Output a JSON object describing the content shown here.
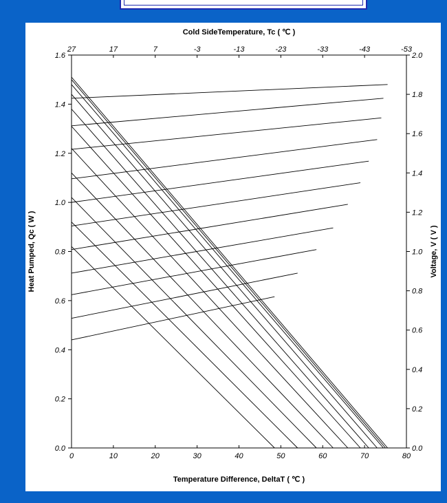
{
  "chart_data": {
    "type": "line",
    "title": "",
    "xlabel": "Temperature Difference, DeltaT ( ℃ )",
    "x2label": "Cold SideTemperature, Tc ( ℃ )",
    "ylabel": "Heat Pumped, Qc ( W )",
    "y2label": "Voltage, V ( V )",
    "xlim": [
      0,
      80
    ],
    "ylim": [
      0,
      1.6
    ],
    "y2lim": [
      0,
      2.0
    ],
    "grid": false,
    "x_ticks": [
      "0",
      "10",
      "20",
      "30",
      "40",
      "50",
      "60",
      "70",
      "80"
    ],
    "x2_ticks": [
      "27",
      "17",
      "7",
      "-3",
      "-13",
      "-23",
      "-33",
      "-43",
      "-53"
    ],
    "y_ticks": [
      "0.0",
      "0.2",
      "0.4",
      "0.6",
      "0.8",
      "1.0",
      "1.2",
      "1.4",
      "1.6"
    ],
    "y2_ticks": [
      "0.0",
      "0.2",
      "0.4",
      "0.6",
      "0.8",
      "1.0",
      "1.2",
      "1.4",
      "1.6",
      "1.8",
      "2.0"
    ],
    "heat_pumped_series": [
      {
        "x": [
          0,
          48.5
        ],
        "y": [
          0.82,
          0
        ]
      },
      {
        "x": [
          0,
          54
        ],
        "y": [
          0.92,
          0
        ]
      },
      {
        "x": [
          0,
          58.5
        ],
        "y": [
          1.02,
          0
        ]
      },
      {
        "x": [
          0,
          62.5
        ],
        "y": [
          1.12,
          0
        ]
      },
      {
        "x": [
          0,
          66
        ],
        "y": [
          1.22,
          0
        ]
      },
      {
        "x": [
          0,
          69
        ],
        "y": [
          1.31,
          0
        ]
      },
      {
        "x": [
          0,
          71
        ],
        "y": [
          1.38,
          0
        ]
      },
      {
        "x": [
          0,
          73
        ],
        "y": [
          1.44,
          0
        ]
      },
      {
        "x": [
          0,
          74.5
        ],
        "y": [
          1.48,
          0
        ]
      },
      {
        "x": [
          0,
          75
        ],
        "y": [
          1.5,
          0
        ]
      },
      {
        "x": [
          0,
          75.5
        ],
        "y": [
          1.51,
          0
        ]
      }
    ],
    "voltage_series": [
      {
        "x": [
          0,
          48.5
        ],
        "y": [
          0.55,
          0.77
        ]
      },
      {
        "x": [
          0,
          54
        ],
        "y": [
          0.66,
          0.89
        ]
      },
      {
        "x": [
          0,
          58.5
        ],
        "y": [
          0.78,
          1.01
        ]
      },
      {
        "x": [
          0,
          62.5
        ],
        "y": [
          0.89,
          1.12
        ]
      },
      {
        "x": [
          0,
          66
        ],
        "y": [
          1.01,
          1.24
        ]
      },
      {
        "x": [
          0,
          69
        ],
        "y": [
          1.13,
          1.35
        ]
      },
      {
        "x": [
          0,
          71
        ],
        "y": [
          1.25,
          1.46
        ]
      },
      {
        "x": [
          0,
          73
        ],
        "y": [
          1.37,
          1.57
        ]
      },
      {
        "x": [
          0,
          74
        ],
        "y": [
          1.52,
          1.68
        ]
      },
      {
        "x": [
          0,
          74.5
        ],
        "y": [
          1.64,
          1.78
        ]
      },
      {
        "x": [
          0,
          75.5
        ],
        "y": [
          1.78,
          1.85
        ]
      }
    ],
    "colors": {
      "line": "#000000",
      "axis": "#000000",
      "background": "#ffffff",
      "frame": "#0a63c8"
    }
  }
}
